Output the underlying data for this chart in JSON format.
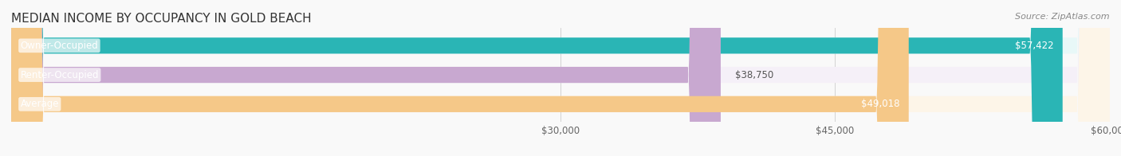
{
  "title": "MEDIAN INCOME BY OCCUPANCY IN GOLD BEACH",
  "source": "Source: ZipAtlas.com",
  "categories": [
    "Owner-Occupied",
    "Renter-Occupied",
    "Average"
  ],
  "values": [
    57422,
    38750,
    49018
  ],
  "bar_colors": [
    "#2ab5b5",
    "#c8a8d0",
    "#f5c888"
  ],
  "bar_bg_colors": [
    "#e8f8f8",
    "#f5f0f8",
    "#fdf5e8"
  ],
  "value_labels": [
    "$57,422",
    "$38,750",
    "$49,018"
  ],
  "xlim": [
    0,
    60000
  ],
  "xticks": [
    30000,
    45000,
    60000
  ],
  "xtick_labels": [
    "$30,000",
    "$45,000",
    "$60,000"
  ],
  "title_fontsize": 11,
  "label_fontsize": 8.5,
  "value_fontsize": 8.5,
  "source_fontsize": 8,
  "bar_height": 0.55,
  "background_color": "#f9f9f9"
}
